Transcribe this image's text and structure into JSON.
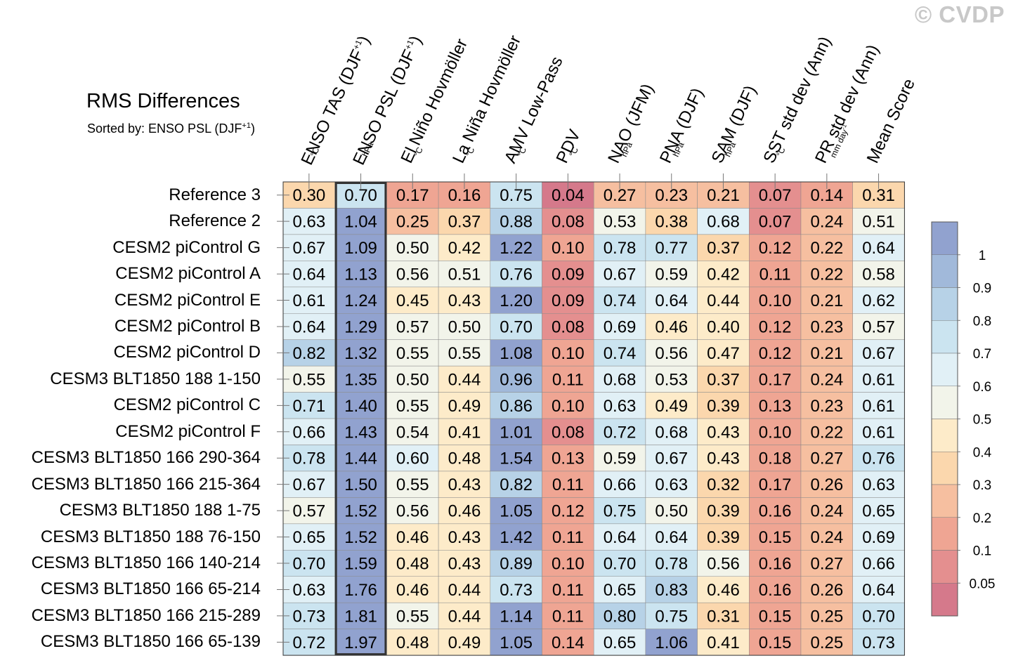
{
  "watermark": "© CVDP",
  "title": "RMS Differences",
  "subtitle": {
    "text": "Sorted by: ENSO PSL (DJF",
    "sup": "+1",
    "close": ")"
  },
  "chart_data": {
    "type": "heatmap",
    "title": "RMS Differences",
    "sorted_by": "ENSO PSL (DJF+1)",
    "highlighted_column": 1,
    "columns": [
      {
        "label": "ENSO TAS (DJF",
        "sup": "+1",
        "close": ")",
        "unit": "°C"
      },
      {
        "label": "ENSO PSL (DJF",
        "sup": "+1",
        "close": ")",
        "unit": "hPa"
      },
      {
        "label": "El Niño Hovmöller",
        "unit": "°C"
      },
      {
        "label": "La Niña Hovmöller",
        "unit": "°C"
      },
      {
        "label": "AMV Low-Pass",
        "unit": "°C"
      },
      {
        "label": "PDV",
        "unit": "°C"
      },
      {
        "label": "NAO (JFM)",
        "unit": "hPa"
      },
      {
        "label": "PNA (DJF)",
        "unit": "hPa"
      },
      {
        "label": "SAM (DJF)",
        "unit": "hPa"
      },
      {
        "label": "SST std dev (Ann)",
        "unit": "°C"
      },
      {
        "label": "PR std dev (Ann)",
        "unit": "mm day",
        "unit_sup": "-1"
      },
      {
        "label": "Mean Score",
        "unit": ""
      }
    ],
    "rows": [
      "Reference 3",
      "Reference 2",
      "CESM2 piControl G",
      "CESM2 piControl A",
      "CESM2 piControl E",
      "CESM2 piControl B",
      "CESM2 piControl D",
      "CESM3 BLT1850 188 1-150",
      "CESM2 piControl C",
      "CESM2 piControl F",
      "CESM3 BLT1850 166 290-364",
      "CESM3 BLT1850 166 215-364",
      "CESM3 BLT1850 188 1-75",
      "CESM3 BLT1850 188 76-150",
      "CESM3 BLT1850 166 140-214",
      "CESM3 BLT1850 166 65-214",
      "CESM3 BLT1850 166 215-289",
      "CESM3 BLT1850 166 65-139"
    ],
    "values": [
      [
        "0.30",
        "0.70",
        "0.17",
        "0.16",
        "0.75",
        "0.04",
        "0.27",
        "0.23",
        "0.21",
        "0.07",
        "0.14",
        "0.31"
      ],
      [
        "0.63",
        "1.04",
        "0.25",
        "0.37",
        "0.88",
        "0.08",
        "0.53",
        "0.38",
        "0.68",
        "0.07",
        "0.24",
        "0.51"
      ],
      [
        "0.67",
        "1.09",
        "0.50",
        "0.42",
        "1.22",
        "0.10",
        "0.78",
        "0.77",
        "0.37",
        "0.12",
        "0.22",
        "0.64"
      ],
      [
        "0.64",
        "1.13",
        "0.56",
        "0.51",
        "0.76",
        "0.09",
        "0.67",
        "0.59",
        "0.42",
        "0.11",
        "0.22",
        "0.58"
      ],
      [
        "0.61",
        "1.24",
        "0.45",
        "0.43",
        "1.20",
        "0.09",
        "0.74",
        "0.64",
        "0.44",
        "0.10",
        "0.21",
        "0.62"
      ],
      [
        "0.64",
        "1.29",
        "0.57",
        "0.50",
        "0.70",
        "0.08",
        "0.69",
        "0.46",
        "0.40",
        "0.12",
        "0.23",
        "0.57"
      ],
      [
        "0.82",
        "1.32",
        "0.55",
        "0.55",
        "1.08",
        "0.10",
        "0.74",
        "0.56",
        "0.47",
        "0.12",
        "0.21",
        "0.67"
      ],
      [
        "0.55",
        "1.35",
        "0.50",
        "0.44",
        "0.96",
        "0.11",
        "0.68",
        "0.53",
        "0.37",
        "0.17",
        "0.24",
        "0.61"
      ],
      [
        "0.71",
        "1.40",
        "0.55",
        "0.49",
        "0.86",
        "0.10",
        "0.63",
        "0.49",
        "0.39",
        "0.13",
        "0.23",
        "0.61"
      ],
      [
        "0.66",
        "1.43",
        "0.54",
        "0.41",
        "1.01",
        "0.08",
        "0.72",
        "0.68",
        "0.43",
        "0.10",
        "0.22",
        "0.61"
      ],
      [
        "0.78",
        "1.44",
        "0.60",
        "0.48",
        "1.54",
        "0.13",
        "0.59",
        "0.67",
        "0.43",
        "0.18",
        "0.27",
        "0.76"
      ],
      [
        "0.67",
        "1.50",
        "0.55",
        "0.43",
        "0.82",
        "0.11",
        "0.66",
        "0.63",
        "0.32",
        "0.17",
        "0.26",
        "0.63"
      ],
      [
        "0.57",
        "1.52",
        "0.56",
        "0.46",
        "1.05",
        "0.12",
        "0.75",
        "0.50",
        "0.39",
        "0.16",
        "0.24",
        "0.65"
      ],
      [
        "0.65",
        "1.52",
        "0.46",
        "0.43",
        "1.42",
        "0.11",
        "0.64",
        "0.64",
        "0.39",
        "0.15",
        "0.24",
        "0.69"
      ],
      [
        "0.70",
        "1.59",
        "0.48",
        "0.43",
        "0.89",
        "0.10",
        "0.70",
        "0.78",
        "0.56",
        "0.16",
        "0.27",
        "0.66"
      ],
      [
        "0.63",
        "1.76",
        "0.46",
        "0.44",
        "0.73",
        "0.11",
        "0.65",
        "0.83",
        "0.46",
        "0.16",
        "0.26",
        "0.64"
      ],
      [
        "0.73",
        "1.81",
        "0.55",
        "0.44",
        "1.14",
        "0.11",
        "0.80",
        "0.75",
        "0.31",
        "0.15",
        "0.25",
        "0.70"
      ],
      [
        "0.72",
        "1.97",
        "0.48",
        "0.49",
        "1.05",
        "0.14",
        "0.65",
        "1.06",
        "0.41",
        "0.15",
        "0.25",
        "0.73"
      ]
    ],
    "colorbar": {
      "levels": [
        0.05,
        0.1,
        0.2,
        0.3,
        0.4,
        0.5,
        0.6,
        0.7,
        0.8,
        0.9,
        1
      ],
      "tick_labels": [
        "0.05",
        "0.1",
        "0.2",
        "0.3",
        "0.4",
        "0.5",
        "0.6",
        "0.7",
        "0.8",
        "0.9",
        "1"
      ],
      "colors": [
        "#d5798b",
        "#e48f8f",
        "#efa593",
        "#f6bfa0",
        "#fbd7ad",
        "#fdebc9",
        "#f2f4ea",
        "#e1f0f6",
        "#cbe4f0",
        "#b7d2e7",
        "#a1b9da",
        "#91a2cf"
      ]
    }
  }
}
